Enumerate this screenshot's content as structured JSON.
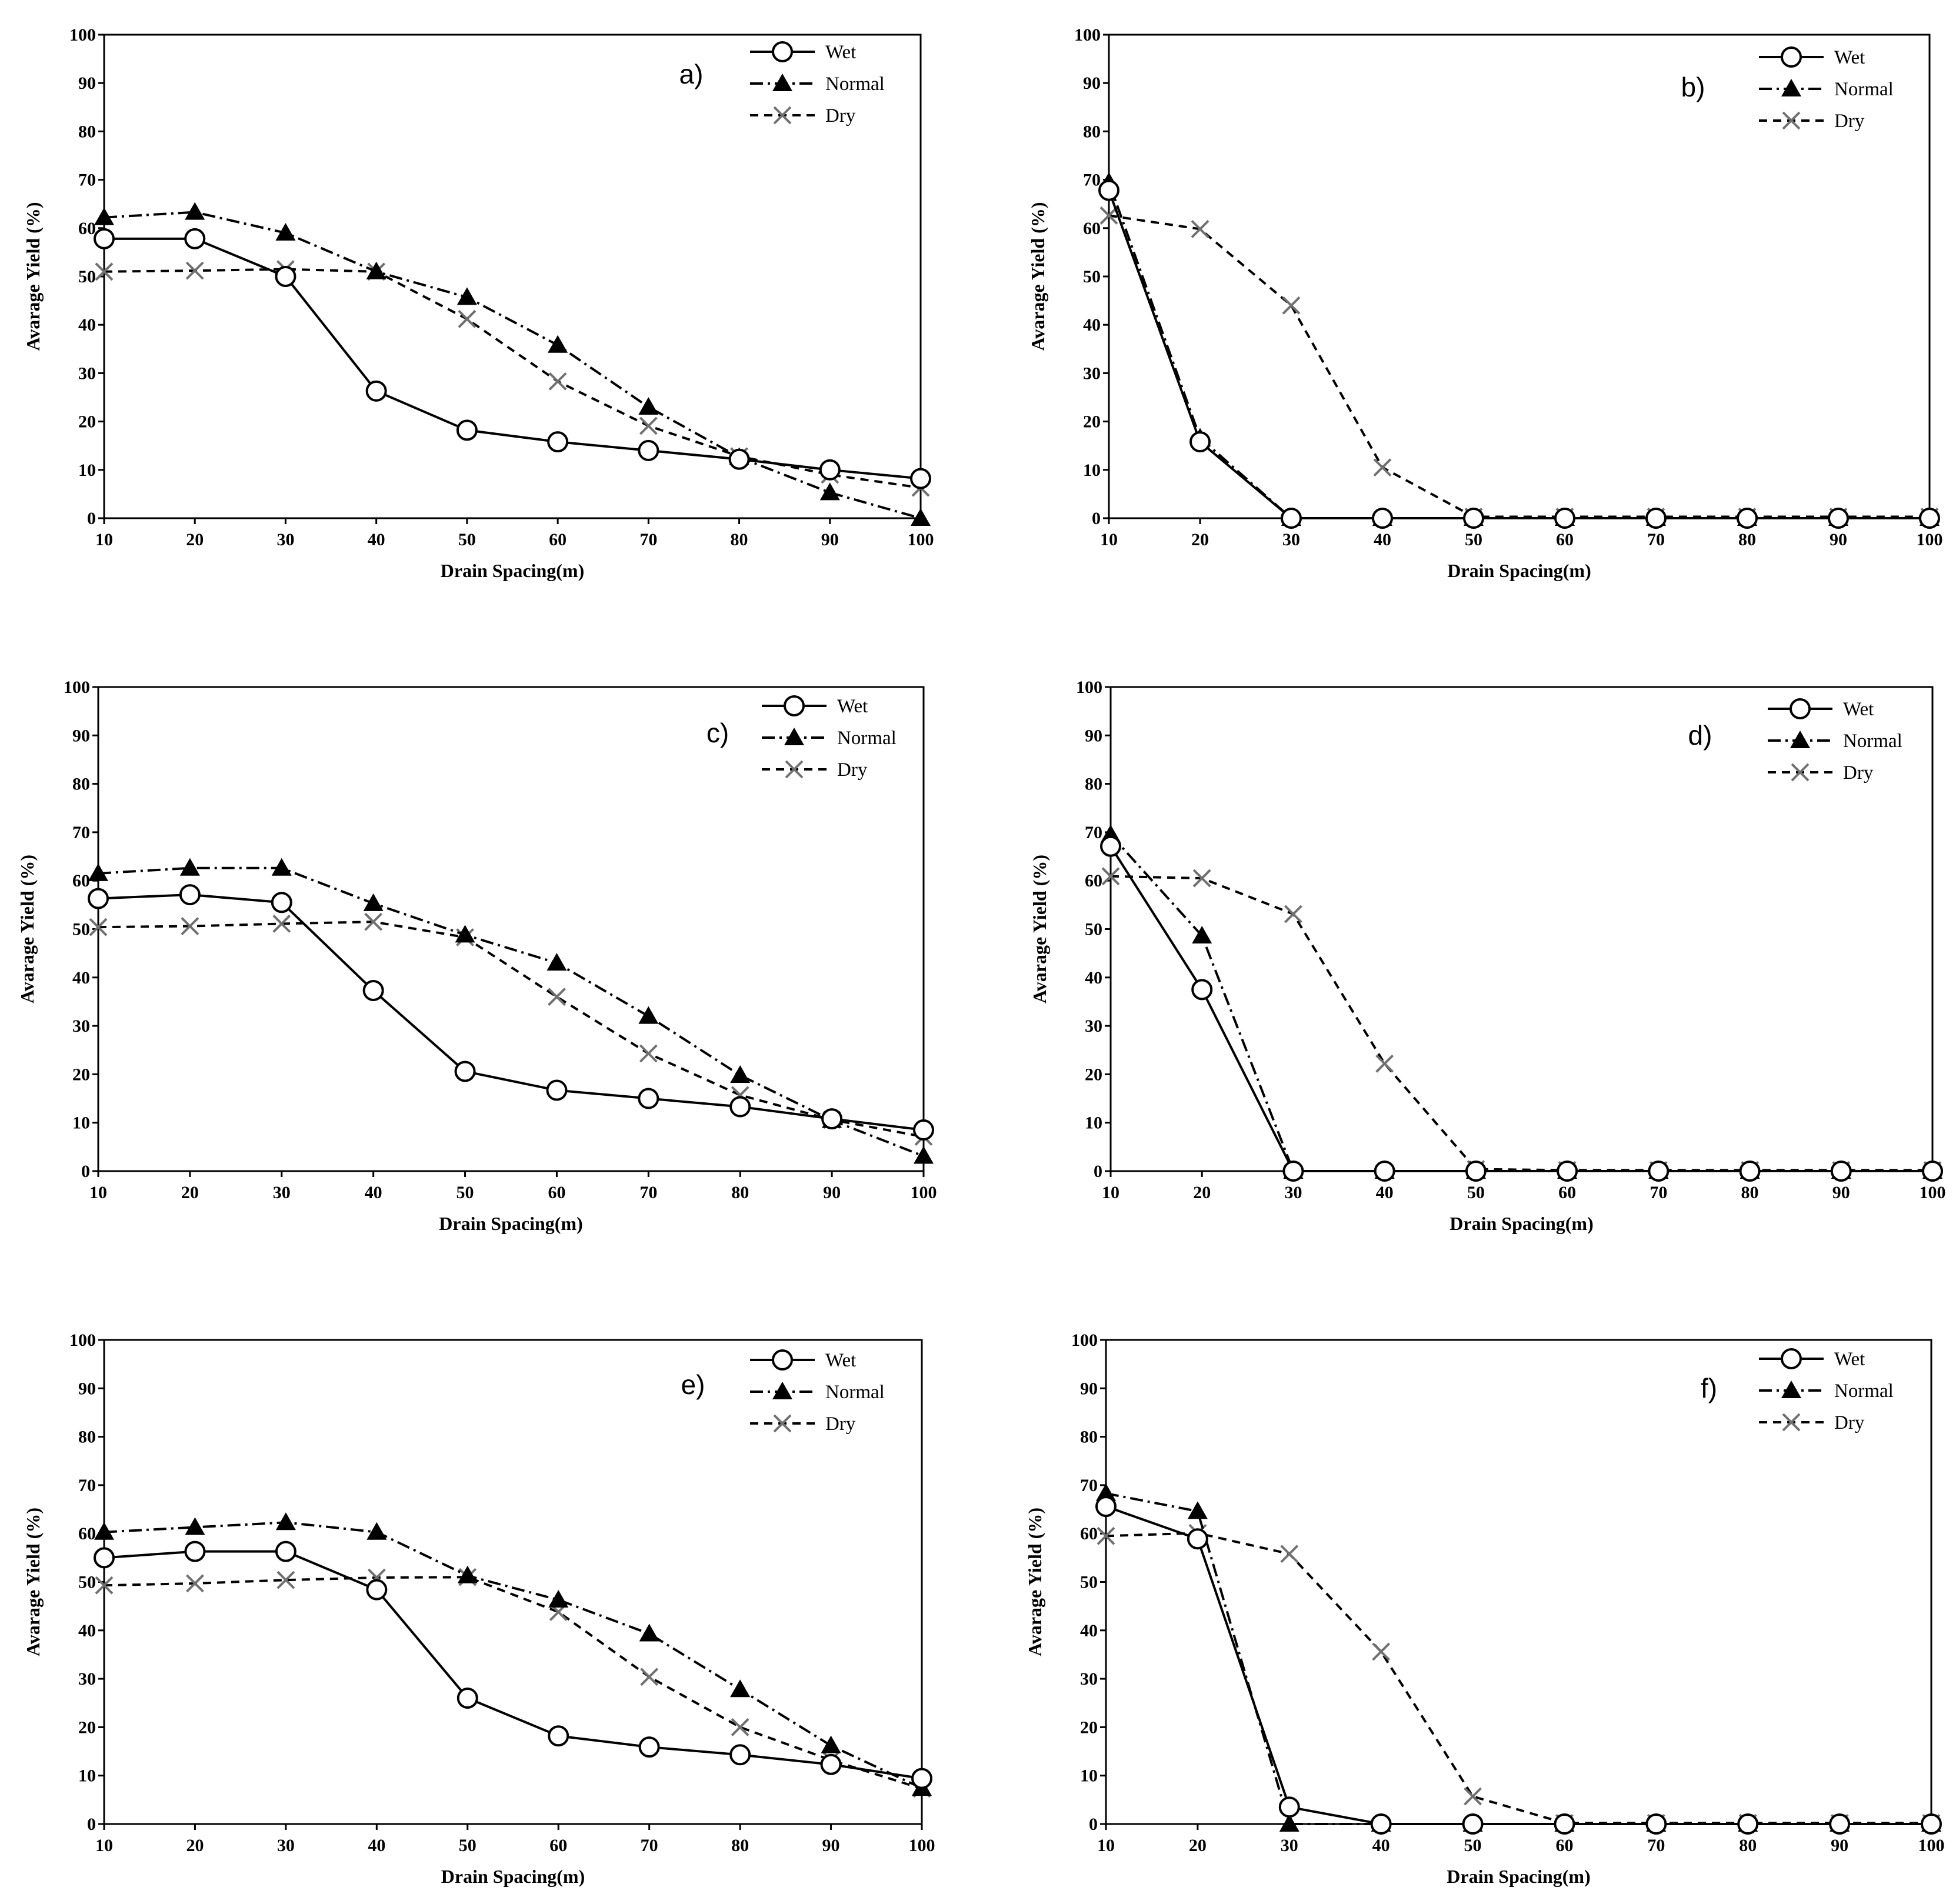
{
  "styles": {
    "Wet": {
      "color": "#000000",
      "dash": "none",
      "marker": "circle"
    },
    "Normal": {
      "color": "#000000",
      "dash": "22 8 4 8",
      "marker": "triangle"
    },
    "Dry": {
      "color": "#000000",
      "dash": "14 10",
      "marker": "x",
      "marker_color": "#707070"
    }
  },
  "chart_data": [
    {
      "type": "line",
      "label": "a)",
      "xlabel": "Drain Spacing(m)",
      "ylabel": "Avarage Yield (%)",
      "x": [
        10,
        20,
        30,
        40,
        50,
        60,
        70,
        80,
        90,
        100
      ],
      "xlim": [
        10,
        100
      ],
      "ylim": [
        0,
        100
      ],
      "xticks": [
        10,
        20,
        30,
        40,
        50,
        60,
        70,
        80,
        90,
        100
      ],
      "yticks": [
        0,
        10,
        20,
        30,
        40,
        50,
        60,
        70,
        80,
        90,
        100
      ],
      "series": [
        {
          "name": "Wet",
          "values": [
            57.8,
            57.8,
            50,
            26.3,
            18.2,
            15.8,
            14,
            12.2,
            10,
            8.2
          ]
        },
        {
          "name": "Normal",
          "values": [
            62.2,
            63.3,
            59,
            51,
            45.7,
            35.8,
            23,
            12.6,
            5.3,
            0
          ]
        },
        {
          "name": "Dry",
          "values": [
            51,
            51.2,
            51.5,
            51,
            41.2,
            28.3,
            19.1,
            12.8,
            9,
            6.3
          ]
        }
      ]
    },
    {
      "type": "line",
      "label": "b)",
      "xlabel": "Drain Spacing(m)",
      "ylabel": "Avarage Yield (%)",
      "x": [
        10,
        20,
        30,
        40,
        50,
        60,
        70,
        80,
        90,
        100
      ],
      "xlim": [
        10,
        100
      ],
      "ylim": [
        0,
        100
      ],
      "xticks": [
        10,
        20,
        30,
        40,
        50,
        60,
        70,
        80,
        90,
        100
      ],
      "yticks": [
        0,
        10,
        20,
        30,
        40,
        50,
        60,
        70,
        80,
        90,
        100
      ],
      "series": [
        {
          "name": "Wet",
          "values": [
            67.8,
            15.8,
            0,
            0,
            0,
            0,
            0,
            0,
            0,
            0
          ]
        },
        {
          "name": "Normal",
          "values": [
            69.5,
            16.6,
            0,
            0,
            0,
            0,
            0,
            0,
            0,
            0
          ]
        },
        {
          "name": "Dry",
          "values": [
            62.6,
            59.8,
            44,
            10.5,
            0.3,
            0.3,
            0.3,
            0.3,
            0.3,
            0.3
          ]
        }
      ]
    },
    {
      "type": "line",
      "label": "c)",
      "xlabel": "Drain Spacing(m)",
      "ylabel": "Avarage Yield (%)",
      "x": [
        10,
        20,
        30,
        40,
        50,
        60,
        70,
        80,
        90,
        100
      ],
      "xlim": [
        10,
        100
      ],
      "ylim": [
        0,
        100
      ],
      "xticks": [
        10,
        20,
        30,
        40,
        50,
        60,
        70,
        80,
        90,
        100
      ],
      "yticks": [
        0,
        10,
        20,
        30,
        40,
        50,
        60,
        70,
        80,
        90,
        100
      ],
      "series": [
        {
          "name": "Wet",
          "values": [
            56.3,
            57.1,
            55.5,
            37.3,
            20.6,
            16.7,
            15,
            13.3,
            10.8,
            8.5
          ]
        },
        {
          "name": "Normal",
          "values": [
            61.5,
            62.6,
            62.6,
            55.3,
            48.8,
            43,
            32,
            19.8,
            10.5,
            3.1
          ]
        },
        {
          "name": "Dry",
          "values": [
            50.4,
            50.6,
            51.1,
            51.5,
            48.3,
            36,
            24.3,
            15.7,
            10.6,
            7.1
          ]
        }
      ]
    },
    {
      "type": "line",
      "label": "d)",
      "xlabel": "Drain Spacing(m)",
      "ylabel": "Avarage Yield (%)",
      "x": [
        10,
        20,
        30,
        40,
        50,
        60,
        70,
        80,
        90,
        100
      ],
      "xlim": [
        10,
        100
      ],
      "ylim": [
        0,
        100
      ],
      "xticks": [
        10,
        20,
        30,
        40,
        50,
        60,
        70,
        80,
        90,
        100
      ],
      "yticks": [
        0,
        10,
        20,
        30,
        40,
        50,
        60,
        70,
        80,
        90,
        100
      ],
      "series": [
        {
          "name": "Wet",
          "values": [
            67.1,
            37.5,
            0,
            0,
            0,
            0,
            0,
            0,
            0,
            0
          ]
        },
        {
          "name": "Normal",
          "values": [
            69.5,
            48.6,
            0,
            0,
            0,
            0,
            0,
            0,
            0,
            0
          ]
        },
        {
          "name": "Dry",
          "values": [
            60.9,
            60.5,
            53.1,
            22.2,
            0.4,
            0.2,
            0.2,
            0.2,
            0.2,
            0.2
          ]
        }
      ]
    },
    {
      "type": "line",
      "label": "e)",
      "xlabel": "Drain Spacing(m)",
      "ylabel": "Avarage Yield (%)",
      "x": [
        10,
        20,
        30,
        40,
        50,
        60,
        70,
        80,
        90,
        100
      ],
      "xlim": [
        10,
        100
      ],
      "ylim": [
        0,
        100
      ],
      "xticks": [
        10,
        20,
        30,
        40,
        50,
        60,
        70,
        80,
        90,
        100
      ],
      "yticks": [
        0,
        10,
        20,
        30,
        40,
        50,
        60,
        70,
        80,
        90,
        100
      ],
      "series": [
        {
          "name": "Wet",
          "values": [
            55,
            56.3,
            56.3,
            48.4,
            26,
            18.2,
            15.9,
            14.3,
            12.3,
            9.4
          ]
        },
        {
          "name": "Normal",
          "values": [
            60.3,
            61.3,
            62.3,
            60.3,
            51.3,
            46.3,
            39.3,
            27.8,
            16.2,
            7.4
          ]
        },
        {
          "name": "Dry",
          "values": [
            49.3,
            49.7,
            50.4,
            50.9,
            51,
            43.8,
            30.4,
            20,
            13.2,
            7.3
          ]
        }
      ]
    },
    {
      "type": "line",
      "label": "f)",
      "xlabel": "Drain Spacing(m)",
      "ylabel": "Avarage Yield (%)",
      "x": [
        10,
        20,
        30,
        40,
        50,
        60,
        70,
        80,
        90,
        100
      ],
      "xlim": [
        10,
        100
      ],
      "ylim": [
        0,
        100
      ],
      "xticks": [
        10,
        20,
        30,
        40,
        50,
        60,
        70,
        80,
        90,
        100
      ],
      "yticks": [
        0,
        10,
        20,
        30,
        40,
        50,
        60,
        70,
        80,
        90,
        100
      ],
      "series": [
        {
          "name": "Wet",
          "values": [
            65.6,
            58.9,
            3.5,
            0,
            0,
            0,
            0,
            0,
            0,
            0
          ]
        },
        {
          "name": "Normal",
          "values": [
            68.3,
            64.6,
            0,
            0,
            0,
            0,
            0,
            0,
            0,
            0
          ]
        },
        {
          "name": "Dry",
          "values": [
            59.5,
            60.1,
            55.8,
            35.6,
            5.7,
            0.2,
            0.2,
            0.2,
            0.2,
            0.2
          ]
        }
      ]
    }
  ]
}
